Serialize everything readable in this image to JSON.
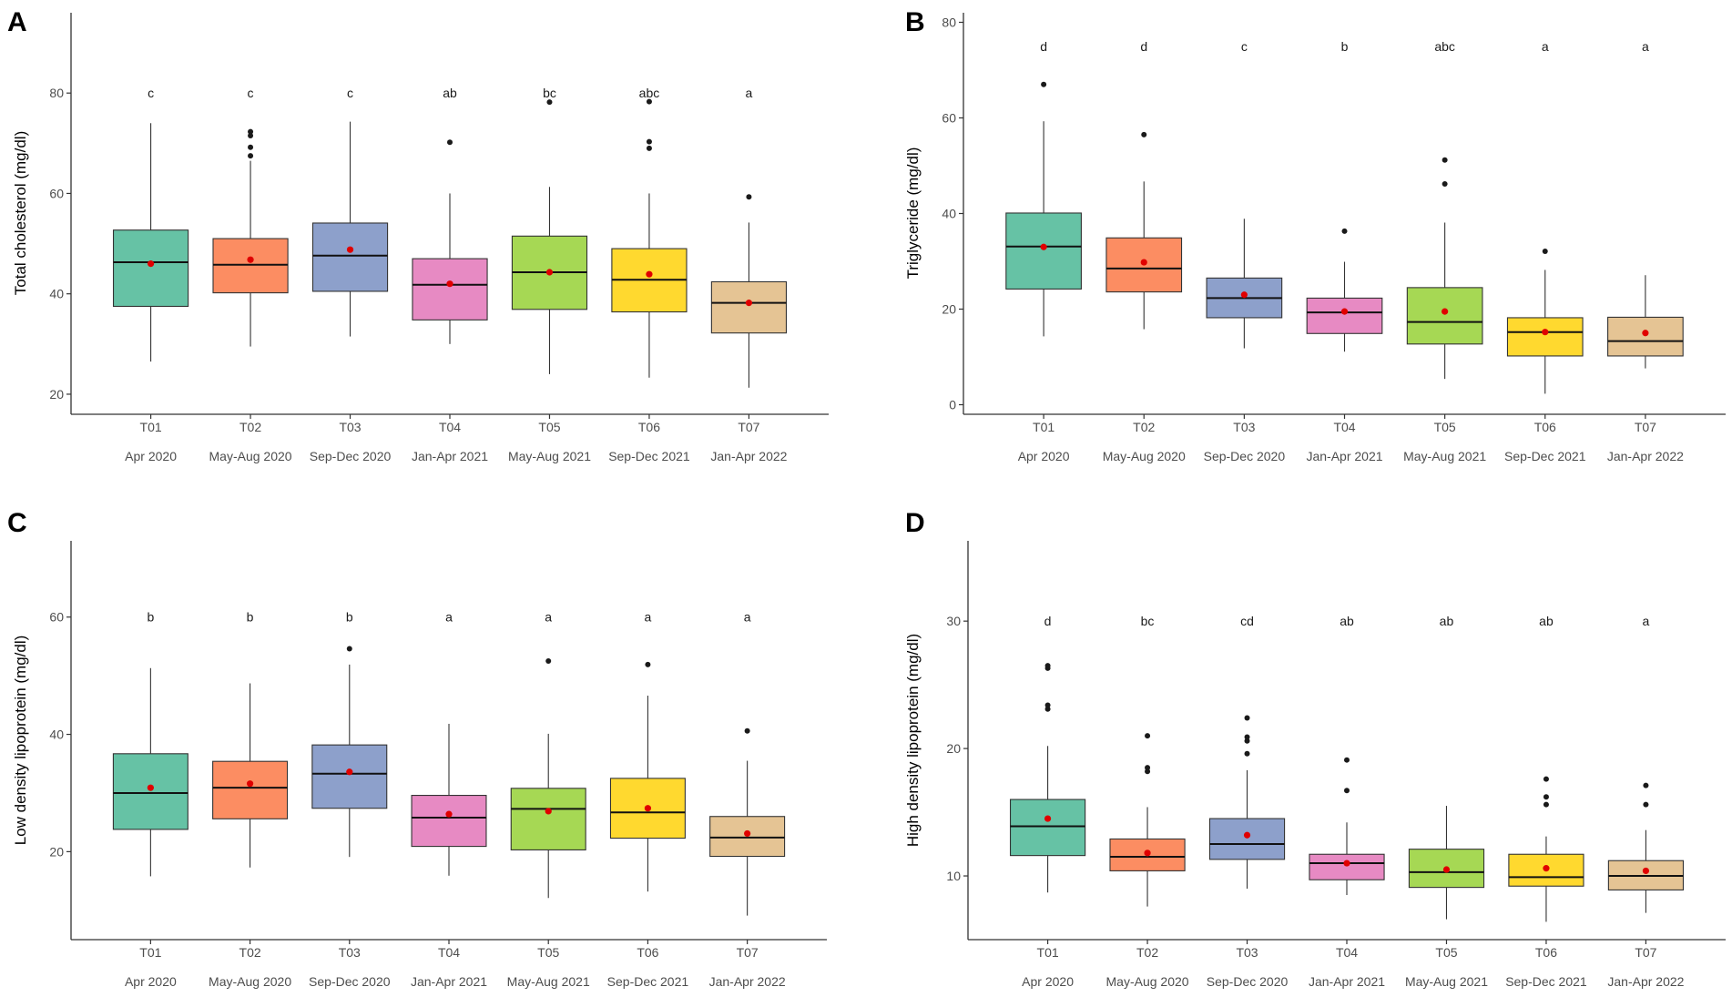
{
  "figure": {
    "categories": [
      "T01",
      "T02",
      "T03",
      "T04",
      "T05",
      "T06",
      "T07"
    ],
    "periods": [
      "Apr 2020",
      "May-Aug 2020",
      "Sep-Dec 2020",
      "Jan-Apr 2021",
      "May-Aug 2021",
      "Sep-Dec 2021",
      "Jan-Apr 2022"
    ],
    "colors": [
      "#66c2a5",
      "#fc8d62",
      "#8da0cb",
      "#e78ac3",
      "#a6d854",
      "#ffd92f",
      "#e5c494"
    ],
    "mean_color": "#e00000"
  },
  "chart_data": [
    {
      "type": "boxplot",
      "panel": "A",
      "title": "",
      "xlabel": "",
      "ylabel": "Total cholesterol (mg/dl)",
      "ylim": [
        16,
        96
      ],
      "yticks": [
        20,
        40,
        60,
        80
      ],
      "sig_y": 80,
      "boxes": [
        {
          "category": "T01",
          "whisker_low": 26.5,
          "q1": 37.5,
          "median": 46.3,
          "q3": 52.7,
          "whisker_high": 74,
          "mean": 46,
          "outliers": [],
          "letter": "c"
        },
        {
          "category": "T02",
          "whisker_low": 29.5,
          "q1": 40.2,
          "median": 45.8,
          "q3": 51,
          "whisker_high": 66.5,
          "mean": 46.8,
          "outliers": [
            67.5,
            69.2,
            71.5,
            72.3
          ],
          "letter": "c"
        },
        {
          "category": "T03",
          "whisker_low": 31.5,
          "q1": 40.5,
          "median": 47.6,
          "q3": 54.1,
          "whisker_high": 74.3,
          "mean": 48.8,
          "outliers": [],
          "letter": "c"
        },
        {
          "category": "T04",
          "whisker_low": 30,
          "q1": 34.8,
          "median": 41.8,
          "q3": 47,
          "whisker_high": 60,
          "mean": 42,
          "outliers": [
            70.2
          ],
          "letter": "ab"
        },
        {
          "category": "T05",
          "whisker_low": 24,
          "q1": 36.9,
          "median": 44.3,
          "q3": 51.5,
          "whisker_high": 61.3,
          "mean": 44.3,
          "outliers": [
            78.2
          ],
          "letter": "bc"
        },
        {
          "category": "T06",
          "whisker_low": 23.3,
          "q1": 36.4,
          "median": 42.8,
          "q3": 49,
          "whisker_high": 60,
          "mean": 43.9,
          "outliers": [
            69,
            70.3,
            78.3
          ],
          "letter": "abc"
        },
        {
          "category": "T07",
          "whisker_low": 21.3,
          "q1": 32.2,
          "median": 38.2,
          "q3": 42.4,
          "whisker_high": 54.2,
          "mean": 38.2,
          "outliers": [
            59.3
          ],
          "letter": "a"
        }
      ]
    },
    {
      "type": "boxplot",
      "panel": "B",
      "title": "",
      "xlabel": "",
      "ylabel": "Triglyceride (mg/dl)",
      "ylim": [
        -2,
        82
      ],
      "yticks": [
        0,
        20,
        40,
        60,
        80
      ],
      "sig_y": 75,
      "boxes": [
        {
          "category": "T01",
          "whisker_low": 14.3,
          "q1": 24.2,
          "median": 33.1,
          "q3": 40.1,
          "whisker_high": 59.3,
          "mean": 33,
          "outliers": [
            67
          ],
          "letter": "d"
        },
        {
          "category": "T02",
          "whisker_low": 15.8,
          "q1": 23.6,
          "median": 28.5,
          "q3": 34.9,
          "whisker_high": 46.7,
          "mean": 29.8,
          "outliers": [
            56.5
          ],
          "letter": "d"
        },
        {
          "category": "T03",
          "whisker_low": 11.8,
          "q1": 18.2,
          "median": 22.3,
          "q3": 26.5,
          "whisker_high": 38.9,
          "mean": 23,
          "outliers": [],
          "letter": "c"
        },
        {
          "category": "T04",
          "whisker_low": 11.1,
          "q1": 14.9,
          "median": 19.3,
          "q3": 22.3,
          "whisker_high": 29.9,
          "mean": 19.5,
          "outliers": [
            36.3
          ],
          "letter": "b"
        },
        {
          "category": "T05",
          "whisker_low": 5.4,
          "q1": 12.7,
          "median": 17.3,
          "q3": 24.5,
          "whisker_high": 38.1,
          "mean": 19.5,
          "outliers": [
            46.2,
            51.2
          ],
          "letter": "abc"
        },
        {
          "category": "T06",
          "whisker_low": 2.3,
          "q1": 10.2,
          "median": 15.2,
          "q3": 18.2,
          "whisker_high": 28.2,
          "mean": 15.2,
          "outliers": [
            32.1
          ],
          "letter": "a"
        },
        {
          "category": "T07",
          "whisker_low": 7.6,
          "q1": 10.2,
          "median": 13.3,
          "q3": 18.3,
          "whisker_high": 27.1,
          "mean": 15,
          "outliers": [],
          "letter": "a"
        }
      ]
    },
    {
      "type": "boxplot",
      "panel": "C",
      "title": "",
      "xlabel": "",
      "ylabel": "Low density lipoprotein (mg/dl)",
      "ylim": [
        5,
        73
      ],
      "yticks": [
        20,
        40,
        60
      ],
      "sig_y": 60,
      "boxes": [
        {
          "category": "T01",
          "whisker_low": 15.8,
          "q1": 23.8,
          "median": 30,
          "q3": 36.7,
          "whisker_high": 51.3,
          "mean": 30.9,
          "outliers": [],
          "letter": "b"
        },
        {
          "category": "T02",
          "whisker_low": 17.3,
          "q1": 25.6,
          "median": 30.9,
          "q3": 35.4,
          "whisker_high": 48.7,
          "mean": 31.6,
          "outliers": [],
          "letter": "b"
        },
        {
          "category": "T03",
          "whisker_low": 19.1,
          "q1": 27.4,
          "median": 33.3,
          "q3": 38.2,
          "whisker_high": 51.9,
          "mean": 33.6,
          "outliers": [
            54.6
          ],
          "letter": "b"
        },
        {
          "category": "T04",
          "whisker_low": 15.9,
          "q1": 20.9,
          "median": 25.8,
          "q3": 29.6,
          "whisker_high": 41.8,
          "mean": 26.4,
          "outliers": [],
          "letter": "a"
        },
        {
          "category": "T05",
          "whisker_low": 12.1,
          "q1": 20.3,
          "median": 27.3,
          "q3": 30.8,
          "whisker_high": 40.1,
          "mean": 26.9,
          "outliers": [
            52.5
          ],
          "letter": "a"
        },
        {
          "category": "T06",
          "whisker_low": 13.2,
          "q1": 22.3,
          "median": 26.7,
          "q3": 32.5,
          "whisker_high": 46.6,
          "mean": 27.4,
          "outliers": [
            51.9
          ],
          "letter": "a"
        },
        {
          "category": "T07",
          "whisker_low": 9.1,
          "q1": 19.2,
          "median": 22.4,
          "q3": 26,
          "whisker_high": 35.5,
          "mean": 23.1,
          "outliers": [
            40.6
          ],
          "letter": "a"
        }
      ]
    },
    {
      "type": "boxplot",
      "panel": "D",
      "title": "",
      "xlabel": "",
      "ylabel": "High density lipoprotein (mg/dl)",
      "ylim": [
        5,
        36.3
      ],
      "yticks": [
        10,
        20,
        30
      ],
      "sig_y": 30,
      "boxes": [
        {
          "category": "T01",
          "whisker_low": 8.7,
          "q1": 11.6,
          "median": 13.9,
          "q3": 16,
          "whisker_high": 20.2,
          "mean": 14.5,
          "outliers": [
            23.1,
            23.4,
            26.3,
            26.5
          ],
          "letter": "d"
        },
        {
          "category": "T02",
          "whisker_low": 7.6,
          "q1": 10.4,
          "median": 11.5,
          "q3": 12.9,
          "whisker_high": 15.4,
          "mean": 11.8,
          "outliers": [
            18.2,
            18.5,
            21
          ],
          "letter": "bc"
        },
        {
          "category": "T03",
          "whisker_low": 9,
          "q1": 11.3,
          "median": 12.5,
          "q3": 14.5,
          "whisker_high": 18.3,
          "mean": 13.2,
          "outliers": [
            19.6,
            20.6,
            20.9,
            22.4
          ],
          "letter": "cd"
        },
        {
          "category": "T04",
          "whisker_low": 8.5,
          "q1": 9.7,
          "median": 11,
          "q3": 11.7,
          "whisker_high": 14.2,
          "mean": 11,
          "outliers": [
            16.7,
            19.1
          ],
          "letter": "ab"
        },
        {
          "category": "T05",
          "whisker_low": 6.6,
          "q1": 9.1,
          "median": 10.3,
          "q3": 12.1,
          "whisker_high": 15.5,
          "mean": 10.5,
          "outliers": [],
          "letter": "ab"
        },
        {
          "category": "T06",
          "whisker_low": 6.4,
          "q1": 9.2,
          "median": 9.9,
          "q3": 11.7,
          "whisker_high": 13.1,
          "mean": 10.6,
          "outliers": [
            15.6,
            16.2,
            17.6
          ],
          "letter": "ab"
        },
        {
          "category": "T07",
          "whisker_low": 7.1,
          "q1": 8.9,
          "median": 10,
          "q3": 11.2,
          "whisker_high": 13.6,
          "mean": 10.4,
          "outliers": [
            15.6,
            17.1
          ],
          "letter": "a"
        }
      ]
    }
  ]
}
